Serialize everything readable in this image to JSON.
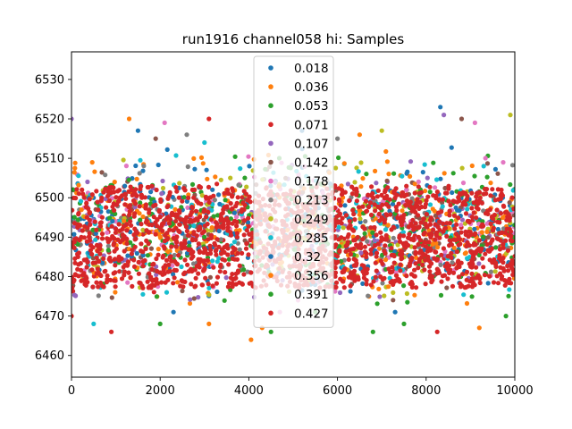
{
  "chart_data": {
    "type": "scatter",
    "title": "run1916 channel058 hi: Samples",
    "xlabel": "",
    "ylabel": "",
    "xlim": [
      0,
      10000
    ],
    "ylim": [
      6454.5,
      6537
    ],
    "x_ticks": [
      0,
      2000,
      4000,
      6000,
      8000,
      10000
    ],
    "x_tick_labels": [
      "0",
      "2000",
      "4000",
      "6000",
      "8000",
      "10000"
    ],
    "y_ticks": [
      6460,
      6470,
      6480,
      6490,
      6500,
      6510,
      6520,
      6530
    ],
    "y_tick_labels": [
      "6460",
      "6470",
      "6480",
      "6490",
      "6500",
      "6510",
      "6520",
      "6530"
    ],
    "grid": false,
    "legend_position": "upper-center",
    "baseline": 6490,
    "series": [
      {
        "name": "0.018",
        "color": "#1f77b4",
        "spread": [
          6473,
          6513
        ],
        "outliers": [
          [
            8320,
            6523
          ],
          [
            1500,
            6517
          ],
          [
            7300,
            6471
          ],
          [
            2300,
            6471
          ]
        ]
      },
      {
        "name": "0.036",
        "color": "#ff7f0e",
        "spread": [
          6473,
          6512
        ],
        "outliers": [
          [
            1300,
            6520
          ],
          [
            4050,
            6464
          ],
          [
            4300,
            6467
          ],
          [
            9200,
            6467
          ],
          [
            3100,
            6468
          ]
        ]
      },
      {
        "name": "0.053",
        "color": "#2ca02c",
        "spread": [
          6473,
          6511
        ],
        "outliers": [
          [
            6800,
            6466
          ],
          [
            2000,
            6468
          ],
          [
            4500,
            6466
          ],
          [
            7500,
            6468
          ],
          [
            9800,
            6470
          ]
        ]
      },
      {
        "name": "0.071",
        "color": "#d62728",
        "spread": [
          6476,
          6504
        ],
        "outliers": [
          [
            3100,
            6520
          ],
          [
            8250,
            6466
          ],
          [
            900,
            6466
          ],
          [
            0,
            6470
          ]
        ]
      },
      {
        "name": "0.107",
        "color": "#9467bd",
        "spread": [
          6474,
          6511
        ],
        "outliers": [
          [
            0,
            6520
          ],
          [
            8400,
            6521
          ]
        ]
      },
      {
        "name": "0.142",
        "color": "#8c564b",
        "spread": [
          6474,
          6510
        ],
        "outliers": [
          [
            8800,
            6520
          ],
          [
            1900,
            6515
          ]
        ]
      },
      {
        "name": "0.178",
        "color": "#e377c2",
        "spread": [
          6474,
          6511
        ],
        "outliers": [
          [
            2100,
            6519
          ],
          [
            9100,
            6519
          ],
          [
            4700,
            6471
          ]
        ]
      },
      {
        "name": "0.213",
        "color": "#7f7f7f",
        "spread": [
          6475,
          6510
        ],
        "outliers": [
          [
            6000,
            6515
          ],
          [
            2600,
            6516
          ]
        ]
      },
      {
        "name": "0.249",
        "color": "#bcbd22",
        "spread": [
          6475,
          6510
        ],
        "outliers": [
          [
            9900,
            6521
          ],
          [
            7000,
            6517
          ]
        ]
      },
      {
        "name": "0.285",
        "color": "#17becf",
        "spread": [
          6475,
          6511
        ],
        "outliers": [
          [
            500,
            6468
          ],
          [
            3000,
            6514
          ]
        ]
      },
      {
        "name": "0.32",
        "color": "#1f77b4",
        "spread": [
          6476,
          6509
        ],
        "outliers": [
          [
            5200,
            6517
          ]
        ]
      },
      {
        "name": "0.356",
        "color": "#ff7f0e",
        "spread": [
          6476,
          6509
        ],
        "outliers": [
          [
            6500,
            6516
          ]
        ]
      },
      {
        "name": "0.391",
        "color": "#2ca02c",
        "spread": [
          6477,
          6508
        ],
        "outliers": [
          [
            5500,
            6471
          ]
        ]
      },
      {
        "name": "0.427",
        "color": "#d62728",
        "spread": [
          6477,
          6503
        ],
        "outliers": []
      }
    ]
  }
}
